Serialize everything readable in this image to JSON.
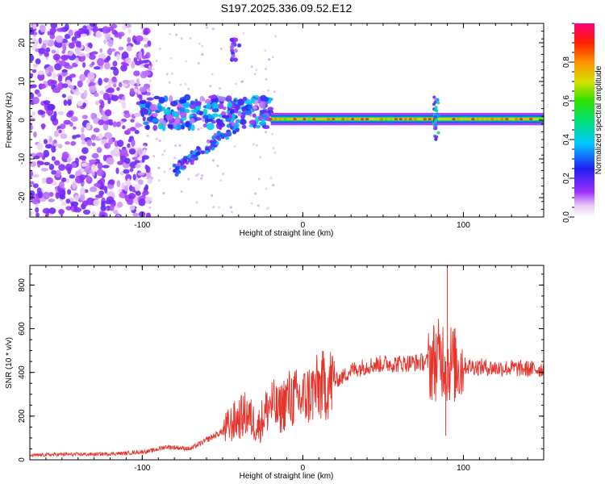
{
  "title": "S197.2025.336.09.52.E12",
  "chart_data": [
    {
      "type": "heatmap",
      "xlabel": "Height of straight line (km)",
      "ylabel": "Frequency (Hz)",
      "xlim": [
        -170,
        150
      ],
      "ylim": [
        -25,
        25
      ],
      "xticks": [
        -100,
        0,
        100
      ],
      "xtick_labels": [
        "-100",
        "0",
        "100"
      ],
      "yticks": [
        -20,
        -10,
        0,
        10,
        20
      ],
      "ytick_labels": [
        "-20",
        "-10",
        "0",
        "10",
        "20"
      ],
      "colorbar": {
        "label": "Normalized spectral amplitude",
        "range": [
          0,
          1
        ],
        "ticks": [
          0.0,
          0.2,
          0.4,
          0.6,
          0.8
        ],
        "tick_labels": [
          "0.0",
          "0.2",
          "0.4",
          "0.6",
          "0.8"
        ]
      },
      "features": [
        {
          "name": "scattered noise",
          "x_range": [
            -170,
            -100
          ],
          "f_range": [
            -25,
            25
          ],
          "amplitude": 0.15
        },
        {
          "name": "coherent band",
          "x_range": [
            -100,
            -20
          ],
          "f_center": 2,
          "f_halfwidth": 4,
          "amplitude": 0.35
        },
        {
          "name": "fork branch",
          "x_from": -80,
          "x_to": -40,
          "f_from": -13,
          "f_to": -1,
          "amplitude": 0.3
        },
        {
          "name": "upper blob",
          "x": -42,
          "f": 18,
          "amplitude": 0.2
        },
        {
          "name": "main line",
          "x_range": [
            -20,
            150
          ],
          "f_center": 0.3,
          "peak_amplitude": 1.0
        },
        {
          "name": "disturbance",
          "x": 83,
          "f_range": [
            -5,
            6
          ],
          "amplitude": 0.4
        }
      ]
    },
    {
      "type": "line",
      "xlabel": "Height of straight line (km)",
      "ylabel": "SNR (10 * v/v)",
      "xlim": [
        -170,
        150
      ],
      "ylim": [
        0,
        890
      ],
      "xticks": [
        -100,
        0,
        100
      ],
      "xtick_labels": [
        "-100",
        "0",
        "100"
      ],
      "yticks": [
        0,
        200,
        400,
        600,
        800
      ],
      "ytick_labels": [
        "0",
        "200",
        "400",
        "600",
        "800"
      ],
      "series": [
        {
          "name": "SNR",
          "color": "#e8332b",
          "x": [
            -170,
            -150,
            -130,
            -110,
            -95,
            -85,
            -70,
            -60,
            -50,
            -42,
            -35,
            -28,
            -20,
            -15,
            -10,
            0,
            10,
            20,
            25,
            30,
            40,
            50,
            60,
            70,
            80,
            85,
            88,
            90,
            92,
            95,
            100,
            110,
            120,
            130,
            140,
            150
          ],
          "y": [
            20,
            25,
            25,
            30,
            40,
            60,
            50,
            90,
            130,
            180,
            210,
            150,
            260,
            220,
            280,
            280,
            330,
            360,
            380,
            410,
            430,
            440,
            440,
            445,
            450,
            460,
            480,
            420,
            450,
            430,
            430,
            425,
            420,
            420,
            415,
            415
          ]
        }
      ],
      "annotations": [
        {
          "name": "spike",
          "x": 90,
          "y": 880
        },
        {
          "name": "dip",
          "x": 89,
          "y": 110
        }
      ]
    }
  ]
}
